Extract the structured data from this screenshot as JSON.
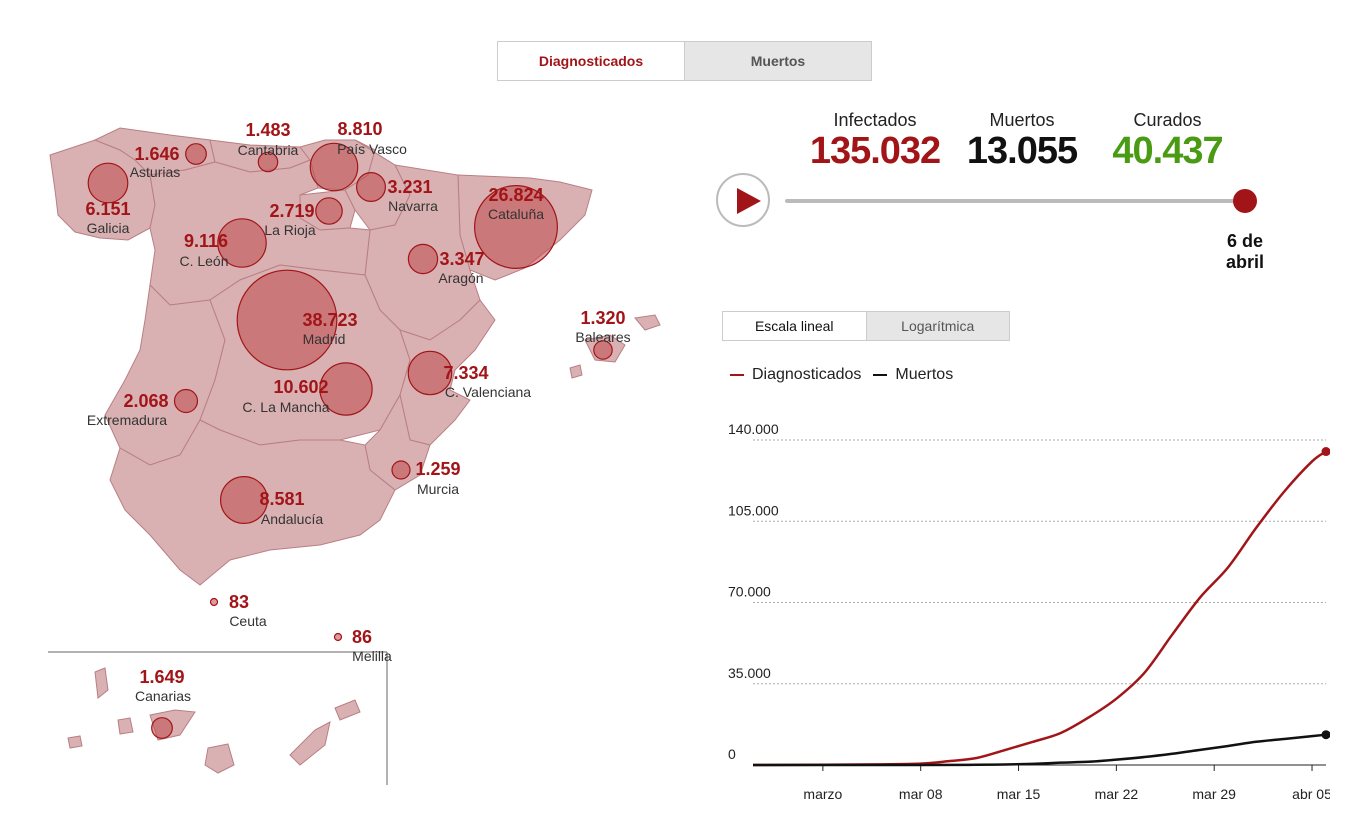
{
  "tabs": {
    "active": "Diagnosticados",
    "inactive": "Muertos"
  },
  "stats": {
    "infectados": {
      "label": "Infectados",
      "value": "135.032",
      "color": "#a11518"
    },
    "muertos": {
      "label": "Muertos",
      "value": "13.055",
      "color": "#111111"
    },
    "curados": {
      "label": "Curados",
      "value": "40.437",
      "color": "#4a9a14"
    }
  },
  "timeline": {
    "date": "6 de abril"
  },
  "scale": {
    "lineal": "Escala lineal",
    "log": "Logarítmica"
  },
  "legend": {
    "diag": "Diagnosticados",
    "muertos": "Muertos"
  },
  "colors": {
    "accent": "#a11518",
    "region": "#d9b1b3",
    "bubble": "#c0494c"
  },
  "regions": [
    {
      "name": "Asturias",
      "value": "1.646"
    },
    {
      "name": "Cantabria",
      "value": "1.483"
    },
    {
      "name": "País Vasco",
      "value": "8.810"
    },
    {
      "name": "Galicia",
      "value": "6.151"
    },
    {
      "name": "Navarra",
      "value": "3.231"
    },
    {
      "name": "La Rioja",
      "value": "2.719"
    },
    {
      "name": "Cataluña",
      "value": "26.824"
    },
    {
      "name": "C. León",
      "value": "9.116"
    },
    {
      "name": "Aragón",
      "value": "3.347"
    },
    {
      "name": "Madrid",
      "value": "38.723"
    },
    {
      "name": "Baleares",
      "value": "1.320"
    },
    {
      "name": "C. Valenciana",
      "value": "7.334"
    },
    {
      "name": "Extremadura",
      "value": "2.068"
    },
    {
      "name": "C. La Mancha",
      "value": "10.602"
    },
    {
      "name": "Murcia",
      "value": "1.259"
    },
    {
      "name": "Andalucía",
      "value": "8.581"
    },
    {
      "name": "Ceuta",
      "value": "83"
    },
    {
      "name": "Melilla",
      "value": "86"
    },
    {
      "name": "Canarias",
      "value": "1.649"
    }
  ],
  "chart_data": {
    "type": "line",
    "xlabel": "",
    "ylabel": "",
    "ylim": [
      0,
      140000
    ],
    "yticks": [
      0,
      35000,
      70000,
      105000,
      140000
    ],
    "ytick_labels": [
      "0",
      "35.000",
      "70.000",
      "105.000",
      "140.000"
    ],
    "xtick_labels": [
      "marzo",
      "mar 08",
      "mar 15",
      "mar 22",
      "mar 29",
      "abr 05"
    ],
    "xtick_day": [
      1,
      8,
      15,
      22,
      29,
      36
    ],
    "x_start_day": -4,
    "series": [
      {
        "name": "Diagnosticados",
        "color": "#a11518",
        "points": [
          [
            -4,
            0
          ],
          [
            1,
            84
          ],
          [
            5,
            282
          ],
          [
            8,
            589
          ],
          [
            10,
            1646
          ],
          [
            12,
            3004
          ],
          [
            14,
            6391
          ],
          [
            16,
            9942
          ],
          [
            18,
            13716
          ],
          [
            20,
            20410
          ],
          [
            22,
            28572
          ],
          [
            24,
            39673
          ],
          [
            26,
            56188
          ],
          [
            28,
            72248
          ],
          [
            30,
            85195
          ],
          [
            32,
            102136
          ],
          [
            34,
            117710
          ],
          [
            36,
            130759
          ],
          [
            37,
            135032
          ]
        ]
      },
      {
        "name": "Muertos",
        "color": "#111111",
        "points": [
          [
            -4,
            0
          ],
          [
            8,
            17
          ],
          [
            12,
            84
          ],
          [
            14,
            196
          ],
          [
            16,
            491
          ],
          [
            18,
            1002
          ],
          [
            20,
            1381
          ],
          [
            22,
            2311
          ],
          [
            24,
            3434
          ],
          [
            26,
            4858
          ],
          [
            28,
            6528
          ],
          [
            30,
            8189
          ],
          [
            32,
            10003
          ],
          [
            34,
            11198
          ],
          [
            36,
            12418
          ],
          [
            37,
            13055
          ]
        ]
      }
    ],
    "grid": true,
    "legend": "top-left"
  }
}
